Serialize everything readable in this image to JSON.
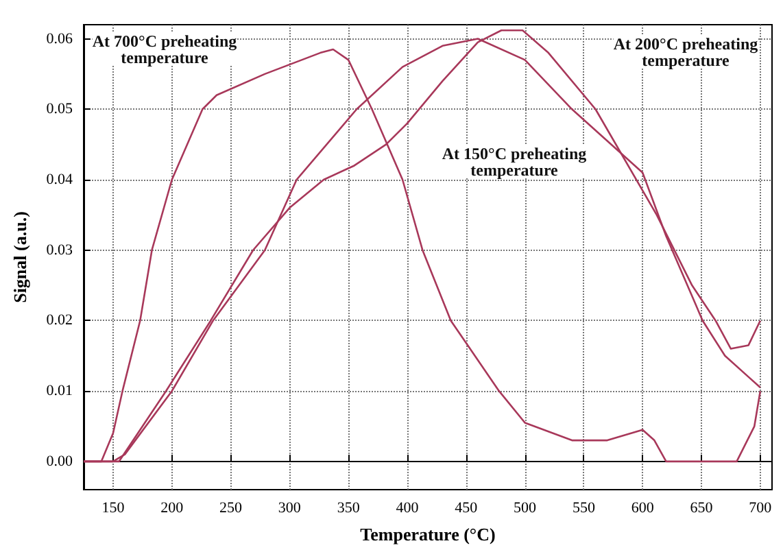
{
  "chart_data": {
    "type": "line",
    "xlabel": "Temperature (°C)",
    "ylabel": "Signal (a.u.)",
    "xlim": [
      125,
      710
    ],
    "xticks": [
      150,
      200,
      250,
      300,
      350,
      400,
      450,
      500,
      550,
      600,
      650,
      700
    ],
    "ylim": [
      -0.004,
      0.062
    ],
    "yticks": [
      {
        "value": 0,
        "label": "0.00"
      },
      {
        "value": 0.01,
        "label": "0.01"
      },
      {
        "value": 0.02,
        "label": "0.02"
      },
      {
        "value": 0.03,
        "label": "0.03"
      },
      {
        "value": 0.04,
        "label": "0.04"
      },
      {
        "value": 0.05,
        "label": "0.05"
      },
      {
        "value": 0.06,
        "label": "0.06"
      }
    ],
    "grid": true,
    "marker": "none",
    "line_style": "solid",
    "series": [
      {
        "color": "#a8385a",
        "x": [
          125,
          140,
          150,
          158,
          173,
          183,
          200,
          226,
          238,
          279,
          326,
          337,
          350,
          370,
          396,
          413,
          437,
          478,
          500,
          540,
          570,
          600,
          610,
          620,
          680,
          695,
          700
        ],
        "values": [
          0,
          0,
          0.004,
          0.01,
          0.02,
          0.03,
          0.04,
          0.05,
          0.052,
          0.055,
          0.058,
          0.0585,
          0.057,
          0.05,
          0.04,
          0.03,
          0.02,
          0.01,
          0.0055,
          0.003,
          0.003,
          0.0045,
          0.003,
          0,
          0,
          0.005,
          0.01
        ]
      },
      {
        "color": "#a8385a",
        "x": [
          125,
          150,
          160,
          200,
          235,
          279,
          306,
          357,
          396,
          430,
          460,
          500,
          540,
          600,
          620,
          651,
          670,
          690,
          700
        ],
        "values": [
          0,
          0,
          0.001,
          0.01,
          0.02,
          0.03,
          0.04,
          0.05,
          0.056,
          0.059,
          0.06,
          0.057,
          0.05,
          0.041,
          0.032,
          0.02,
          0.015,
          0.012,
          0.0105
        ]
      },
      {
        "color": "#a8385a",
        "x": [
          125,
          155,
          195,
          233,
          269,
          300,
          329,
          355,
          382,
          400,
          430,
          460,
          480,
          498,
          520,
          560,
          612,
          642,
          662,
          675,
          690,
          700
        ],
        "values": [
          0,
          0,
          0.01,
          0.02,
          0.03,
          0.036,
          0.04,
          0.042,
          0.045,
          0.048,
          0.054,
          0.0595,
          0.0612,
          0.0612,
          0.058,
          0.05,
          0.035,
          0.025,
          0.02,
          0.016,
          0.0165,
          0.02
        ]
      }
    ],
    "annotations": [
      "At 700°C preheating\ntemperature",
      "At 200°C preheating\ntemperature",
      "At 150°C preheating\ntemperature"
    ]
  }
}
